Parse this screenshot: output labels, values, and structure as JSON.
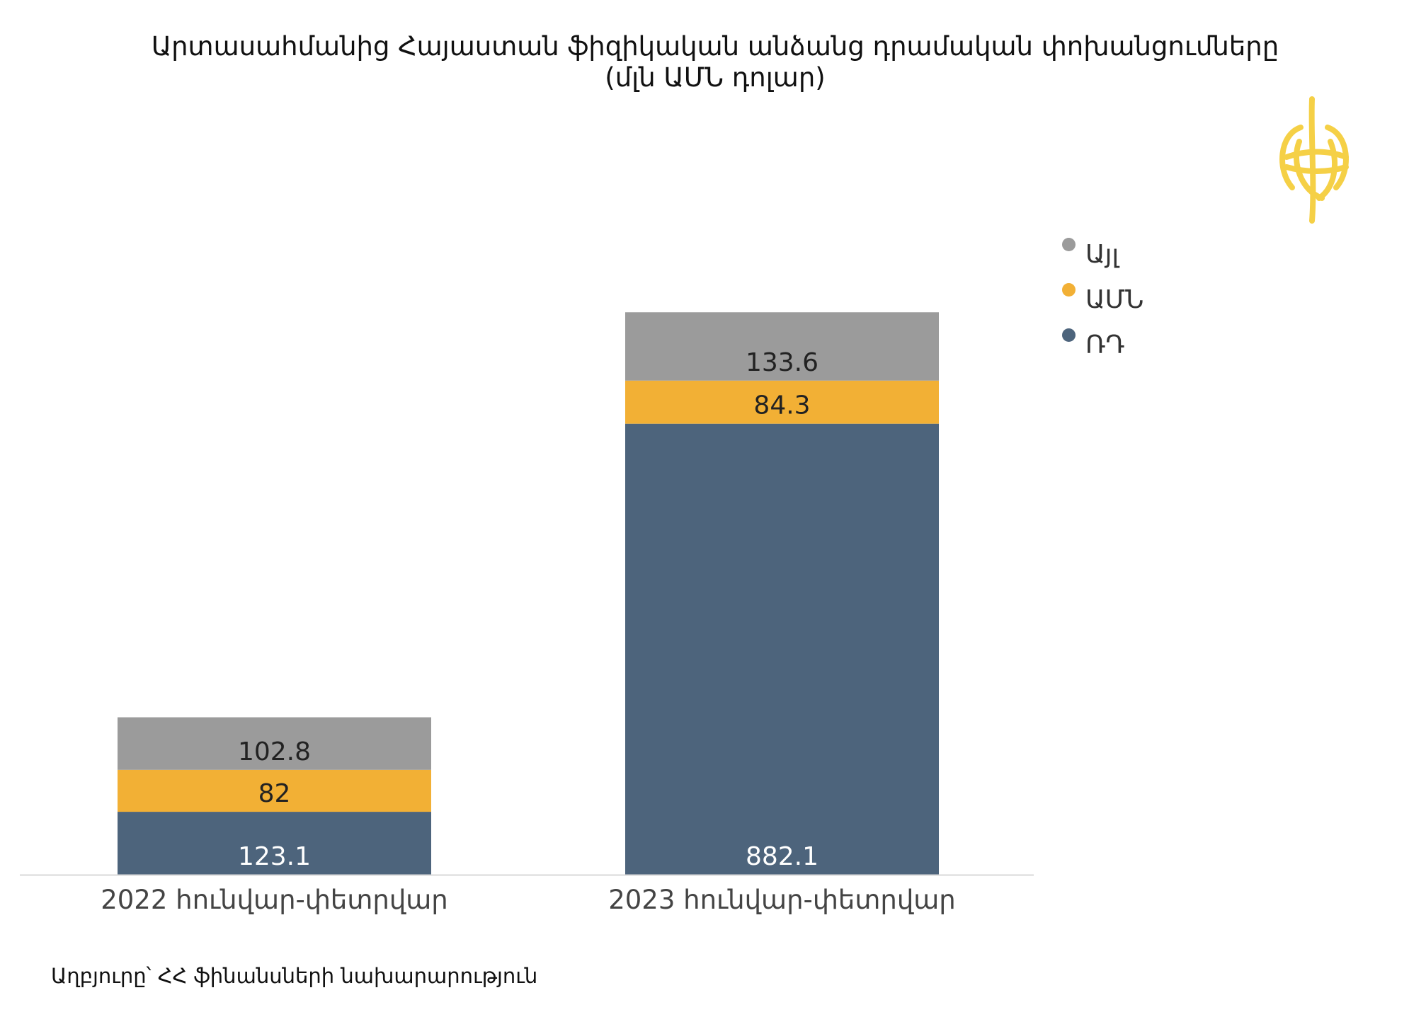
{
  "colors": {
    "ru": "#4d647c",
    "us": "#f2b035",
    "other": "#9b9b9b",
    "axis": "#d9d9d9",
    "logo": "#f5d046"
  },
  "logo": {
    "icon": "yellow-emblem-icon"
  },
  "source": "Աղբյուրը՝ ՀՀ ֆինանսների նախարարություն",
  "chart_data": {
    "type": "bar",
    "stacked": true,
    "title": "Արտասահմանից Հայաստան ֆիզիկական անձանց դրամական փոխանցումները",
    "subtitle": "(մլն ԱՄՆ դոլար)",
    "categories": [
      "2022 հունվար-փետրվար",
      "2023 հունվար-փետրվար"
    ],
    "series": [
      {
        "name": "ՌԴ",
        "values": [
          123.1,
          882.1
        ],
        "labels": [
          "123.1",
          "882.1"
        ],
        "color": "#4d647c",
        "label_color": "#ffffff"
      },
      {
        "name": "ԱՄՆ",
        "values": [
          82,
          84.3
        ],
        "labels": [
          "82",
          "84.3"
        ],
        "color": "#f2b035",
        "label_color": "#222222"
      },
      {
        "name": "Այլ",
        "values": [
          102.8,
          133.6
        ],
        "labels": [
          "102.8",
          "133.6"
        ],
        "color": "#9b9b9b",
        "label_color": "#222222"
      }
    ],
    "legend": [
      "Այլ",
      "ԱՄՆ",
      "ՌԴ"
    ],
    "legend_position": "right",
    "xlabel": "",
    "ylabel": "",
    "ylim": [
      0,
      1100
    ],
    "grid": false,
    "y_axis_visible": false
  }
}
